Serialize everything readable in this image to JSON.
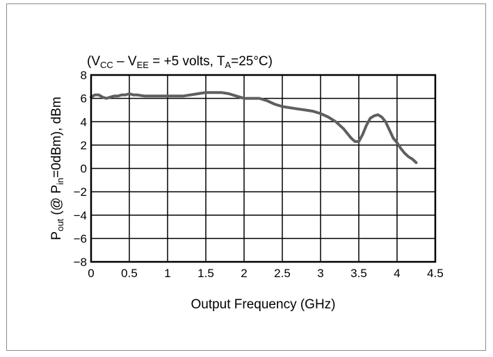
{
  "chart_data": {
    "type": "line",
    "title_parts": [
      {
        "t": "(V",
        "s": ""
      },
      {
        "t": "CC",
        "s": "sub"
      },
      {
        "t": " – V",
        "s": ""
      },
      {
        "t": "EE",
        "s": "sub"
      },
      {
        "t": " = +5 volts, T",
        "s": ""
      },
      {
        "t": "A",
        "s": "sub"
      },
      {
        "t": "=25°C)",
        "s": ""
      }
    ],
    "xlabel": "Output Frequency (GHz)",
    "ylabel_parts": [
      {
        "t": "P",
        "s": ""
      },
      {
        "t": "out",
        "s": "sub"
      },
      {
        "t": " (@ P",
        "s": ""
      },
      {
        "t": "in",
        "s": "sub"
      },
      {
        "t": "=0dBm), dBm",
        "s": ""
      }
    ],
    "xlim": [
      0,
      4.5
    ],
    "ylim": [
      -8,
      8
    ],
    "x_ticks": [
      0,
      0.5,
      1,
      1.5,
      2,
      2.5,
      3,
      3.5,
      4,
      4.5
    ],
    "x_tick_labels": [
      "0",
      "0.5",
      "1",
      "1.5",
      "2",
      "2.5",
      "3",
      "3.5",
      "4",
      "4.5"
    ],
    "y_ticks": [
      8,
      6,
      4,
      2,
      0,
      -2,
      -4,
      -6,
      -8
    ],
    "y_tick_labels": [
      "8",
      "6",
      "4",
      "2",
      "0",
      "−2",
      "−4",
      "−6",
      "−8"
    ],
    "grid": true,
    "line_color": "#5f5f5f",
    "series": [
      {
        "x": [
          0,
          0.05,
          0.1,
          0.15,
          0.2,
          0.25,
          0.3,
          0.35,
          0.4,
          0.45,
          0.5,
          0.55,
          0.6,
          0.7,
          0.8,
          0.9,
          1.0,
          1.1,
          1.2,
          1.3,
          1.4,
          1.5,
          1.6,
          1.7,
          1.8,
          1.9,
          2.0,
          2.1,
          2.2,
          2.3,
          2.4,
          2.5,
          2.6,
          2.7,
          2.8,
          2.9,
          3.0,
          3.1,
          3.2,
          3.3,
          3.35,
          3.4,
          3.45,
          3.5,
          3.55,
          3.6,
          3.65,
          3.7,
          3.75,
          3.8,
          3.85,
          3.9,
          3.95,
          4.0,
          4.05,
          4.1,
          4.15,
          4.2,
          4.25
        ],
        "y": [
          6.1,
          6.3,
          6.3,
          6.1,
          6.0,
          6.1,
          6.2,
          6.2,
          6.3,
          6.3,
          6.4,
          6.3,
          6.3,
          6.2,
          6.2,
          6.2,
          6.2,
          6.2,
          6.2,
          6.3,
          6.4,
          6.5,
          6.5,
          6.5,
          6.4,
          6.2,
          6.0,
          6.0,
          6.0,
          5.8,
          5.5,
          5.3,
          5.2,
          5.1,
          5.0,
          4.9,
          4.7,
          4.4,
          4.0,
          3.4,
          3.0,
          2.6,
          2.3,
          2.3,
          2.9,
          3.7,
          4.3,
          4.5,
          4.6,
          4.4,
          4.0,
          3.3,
          2.6,
          2.2,
          1.7,
          1.3,
          1.0,
          0.8,
          0.5
        ]
      }
    ]
  }
}
